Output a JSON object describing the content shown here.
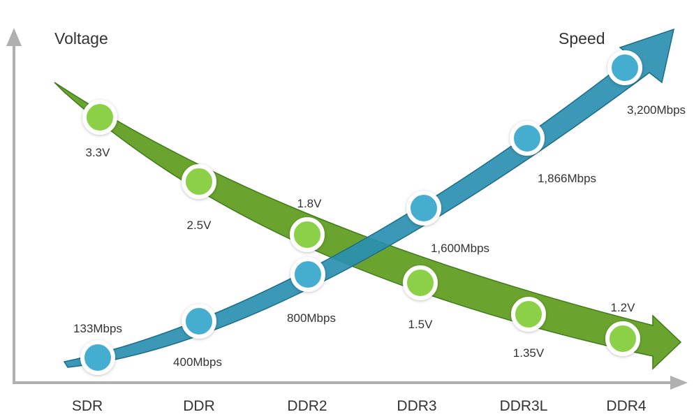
{
  "chart_data": {
    "type": "line",
    "categories": [
      "SDR",
      "DDR",
      "DDR2",
      "DDR3",
      "DDR3L",
      "DDR4"
    ],
    "left_axis_title": "Voltage",
    "right_axis_title": "Speed",
    "grid": false,
    "series": [
      {
        "name": "Voltage",
        "values": [
          3.3,
          2.5,
          1.8,
          1.5,
          1.35,
          1.2
        ],
        "labels": [
          "3.3V",
          "2.5V",
          "1.8V",
          "1.5V",
          "1.35V",
          "1.2V"
        ],
        "color": "#7dc142"
      },
      {
        "name": "Speed",
        "values": [
          133,
          400,
          800,
          1600,
          1866,
          3200
        ],
        "labels": [
          "133Mbps",
          "400Mbps",
          "800Mbps",
          "1,600Mbps",
          "1,866Mbps",
          "3,200Mbps"
        ],
        "color": "#3ea3c4"
      }
    ]
  },
  "colors": {
    "voltage_band": "#6aa42e",
    "speed_band": "#2a8fb0",
    "axis": "#b0b0b0"
  }
}
